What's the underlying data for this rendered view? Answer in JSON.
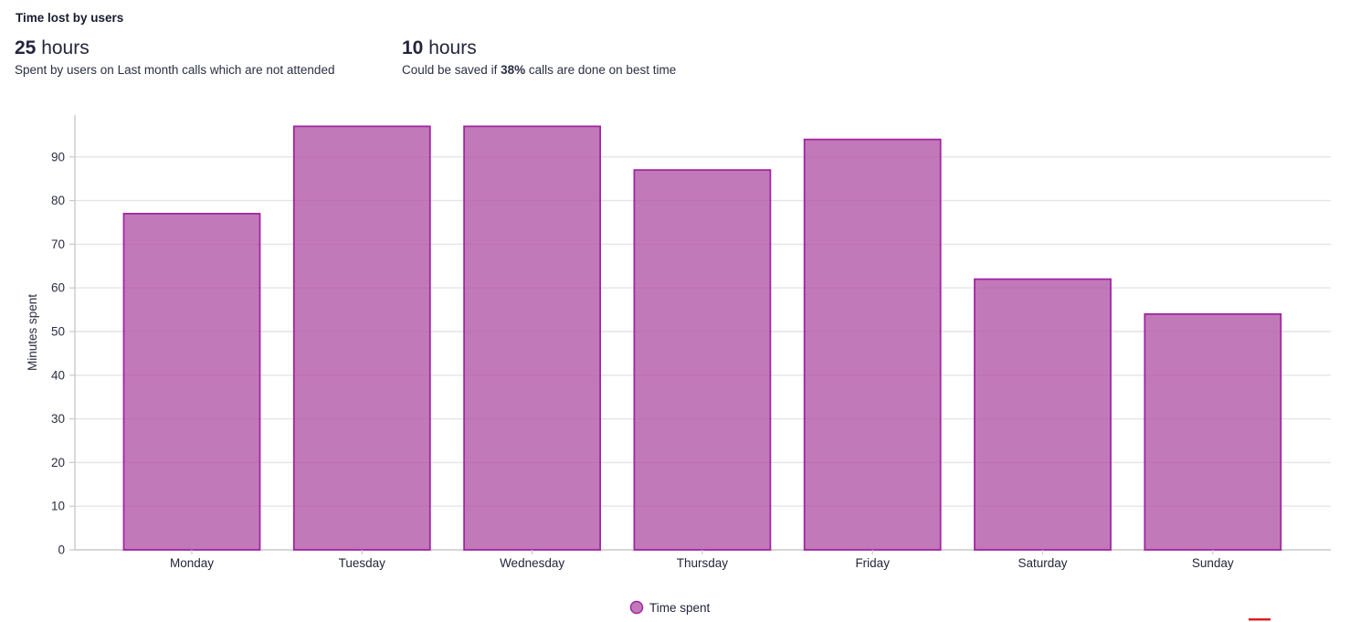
{
  "header": {
    "title": "Time lost by users",
    "stats": [
      {
        "value": "25",
        "unit": " hours",
        "description": "Spent by users on Last month calls which are not attended"
      },
      {
        "value": "10",
        "unit": " hours",
        "desc_prefix": "Could be saved if ",
        "desc_bold": "38%",
        "desc_suffix": " calls are done on best time"
      }
    ]
  },
  "chart_data": {
    "type": "bar",
    "title": "Time lost by users",
    "categories": [
      "Monday",
      "Tuesday",
      "Wednesday",
      "Thursday",
      "Friday",
      "Saturday",
      "Sunday"
    ],
    "series": [
      {
        "name": "Time spent",
        "values": [
          77,
          97,
          97,
          87,
          94,
          62,
          54
        ]
      }
    ],
    "xlabel": "",
    "ylabel": "Minutes spent",
    "ylim": [
      0,
      100
    ],
    "yticks": [
      0,
      10,
      20,
      30,
      40,
      50,
      60,
      70,
      80,
      90
    ],
    "grid": true,
    "legend_position": "bottom"
  },
  "colors": {
    "bar_fill": "#b45caa",
    "bar_fill_opacity": "0.82",
    "bar_border": "#a226a2",
    "gridline": "#e4e4e4",
    "axis": "#c9c9c9",
    "tick_text": "#2b2e40",
    "label_text": "#23273a",
    "red_mark": "#e01a1a"
  }
}
